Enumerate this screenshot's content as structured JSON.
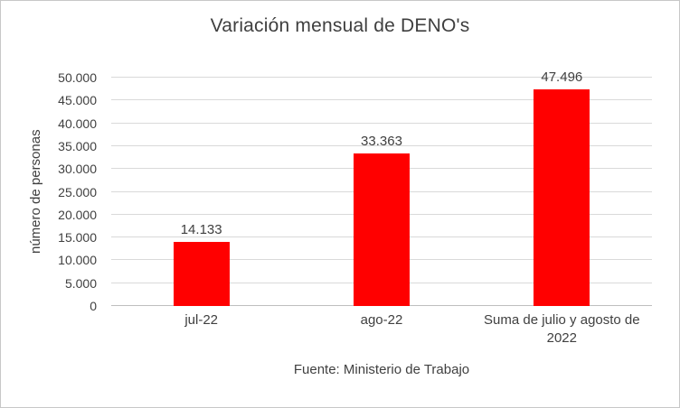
{
  "chart_data": {
    "type": "bar",
    "title": "Variación mensual de DENO's",
    "ylabel": "número de personas",
    "footer": "Fuente: Ministerio de Trabajo",
    "categories": [
      "jul-22",
      "ago-22",
      "Suma de julio y agosto de 2022"
    ],
    "values": [
      14133,
      33363,
      47496
    ],
    "value_labels": [
      "14.133",
      "33.363",
      "47.496"
    ],
    "ylim": [
      0,
      50000
    ],
    "ytick_step": 5000,
    "ytick_labels": [
      "0",
      "5.000",
      "10.000",
      "15.000",
      "20.000",
      "25.000",
      "30.000",
      "35.000",
      "40.000",
      "45.000",
      "50.000"
    ],
    "grid": true,
    "legend": false,
    "bar_color": "#FF0000",
    "colors": {
      "text": "#404040",
      "gridline": "#D9D9D9",
      "axis_line": "#BFBFBF",
      "border": "#C8C8C8"
    }
  }
}
